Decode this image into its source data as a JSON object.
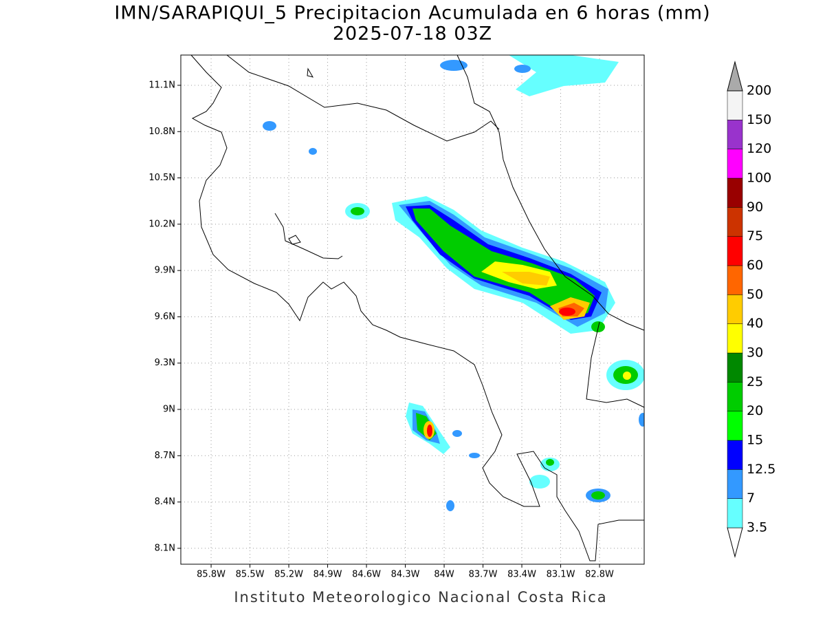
{
  "header": {
    "title": "IMN/SARAPIQUI_5 Precipitacion Acumulada en 6 horas (mm)",
    "subtitle": "2025-07-18 03Z"
  },
  "map": {
    "lonlim": [
      -86.034,
      -82.455
    ],
    "latlim": [
      7.997,
      11.296
    ],
    "lon_ticks": [
      {
        "value": -85.8,
        "label": "85.8W"
      },
      {
        "value": -85.5,
        "label": "85.5W"
      },
      {
        "value": -85.2,
        "label": "85.2W"
      },
      {
        "value": -84.9,
        "label": "84.9W"
      },
      {
        "value": -84.6,
        "label": "84.6W"
      },
      {
        "value": -84.3,
        "label": "84.3W"
      },
      {
        "value": -84.0,
        "label": "84W"
      },
      {
        "value": -83.7,
        "label": "83.7W"
      },
      {
        "value": -83.4,
        "label": "83.4W"
      },
      {
        "value": -83.1,
        "label": "83.1W"
      },
      {
        "value": -82.8,
        "label": "82.8W"
      }
    ],
    "lat_ticks": [
      {
        "value": 8.1,
        "label": "8.1N"
      },
      {
        "value": 8.4,
        "label": "8.4N"
      },
      {
        "value": 8.7,
        "label": "8.7N"
      },
      {
        "value": 9.0,
        "label": "9N"
      },
      {
        "value": 9.3,
        "label": "9.3N"
      },
      {
        "value": 9.6,
        "label": "9.6N"
      },
      {
        "value": 9.9,
        "label": "9.9N"
      },
      {
        "value": 10.2,
        "label": "10.2N"
      },
      {
        "value": 10.5,
        "label": "10.5N"
      },
      {
        "value": 10.8,
        "label": "10.8N"
      },
      {
        "value": 11.1,
        "label": "11.1N"
      }
    ]
  },
  "colorbar": {
    "levels": [
      3.5,
      7,
      12.5,
      15,
      20,
      25,
      30,
      40,
      50,
      60,
      75,
      90,
      100,
      120,
      150,
      200
    ],
    "colors": [
      "#66ffff",
      "#3399ff",
      "#0000ff",
      "#00ff00",
      "#00cc00",
      "#008800",
      "#ffff00",
      "#ffcc00",
      "#ff6600",
      "#ff0000",
      "#cc3300",
      "#990000",
      "#ff00ff",
      "#9933cc",
      "#f4f4f4",
      "#aaaaaa"
    ]
  },
  "footer": "Instituto Meteorologico Nacional Costa Rica"
}
